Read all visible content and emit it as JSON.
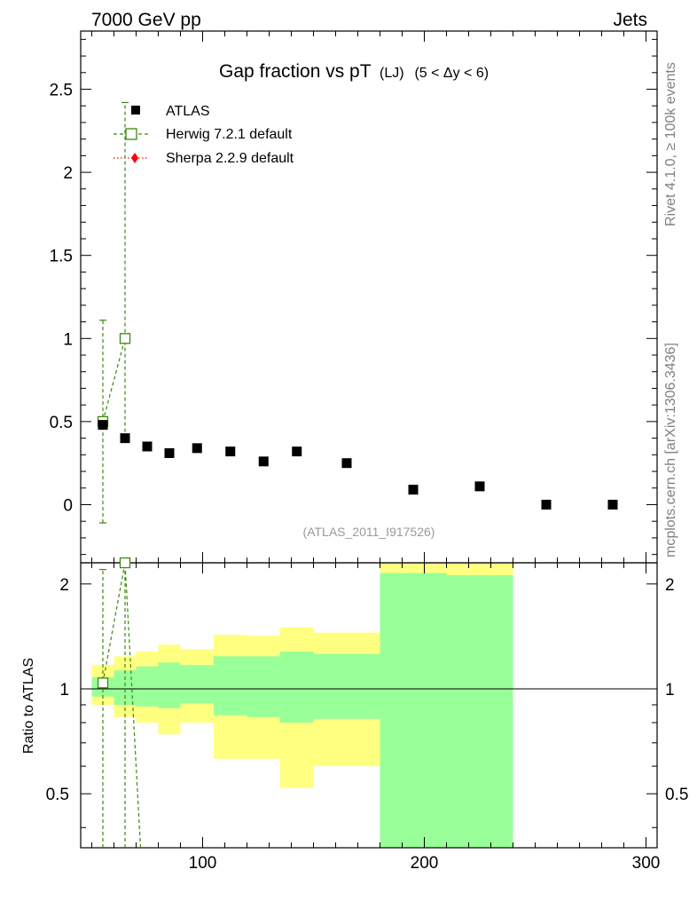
{
  "header": {
    "left": "7000 GeV pp",
    "right": "Jets"
  },
  "side_labels": {
    "rivet": "Rivet 4.1.0, ≥ 100k events",
    "mcplots": "mcplots.cern.ch [arXiv:1306.3436]"
  },
  "chart_data": {
    "type": "scatter",
    "title": {
      "main": "Gap fraction vs pT",
      "sub": "(LJ)",
      "range": "(5 < Δy < 6)"
    },
    "analysis_tag": "(ATLAS_2011_I917526)",
    "xlabel": "",
    "ylabel_ratio": "Ratio to ATLAS",
    "xlim": [
      45,
      305
    ],
    "ylim_main": [
      -0.35,
      2.85
    ],
    "ylim_ratio": [
      0.35,
      2.3
    ],
    "x_ticks": [
      {
        "value": 100,
        "label": "100"
      },
      {
        "value": 200,
        "label": "200"
      },
      {
        "value": 300,
        "label": "300"
      }
    ],
    "y_ticks_main": [
      {
        "value": 0,
        "label": "0"
      },
      {
        "value": 0.5,
        "label": "0.5"
      },
      {
        "value": 1,
        "label": "1"
      },
      {
        "value": 1.5,
        "label": "1.5"
      },
      {
        "value": 2,
        "label": "2"
      },
      {
        "value": 2.5,
        "label": "2.5"
      }
    ],
    "y_ticks_ratio": [
      {
        "value": 0.5,
        "label": "0.5"
      },
      {
        "value": 1,
        "label": "1"
      },
      {
        "value": 2,
        "label": "2"
      }
    ],
    "legend": [
      {
        "name": "ATLAS",
        "color": "#000000",
        "marker": "filled-square"
      },
      {
        "name": "Herwig 7.2.1 default",
        "color": "#3a8a0c",
        "marker": "open-square"
      },
      {
        "name": "Sherpa 2.2.9 default",
        "color": "#ff0000",
        "marker": "diamond"
      }
    ],
    "atlas": {
      "bins": [
        {
          "lo": 50,
          "hi": 60,
          "y": 0.48,
          "r_yellow": [
            0.9,
            1.17
          ],
          "r_green": [
            0.95,
            1.08
          ]
        },
        {
          "lo": 60,
          "hi": 70,
          "y": 0.4,
          "r_yellow": [
            0.83,
            1.24
          ],
          "r_green": [
            0.9,
            1.13
          ]
        },
        {
          "lo": 70,
          "hi": 80,
          "y": 0.35,
          "r_yellow": [
            0.8,
            1.28
          ],
          "r_green": [
            0.89,
            1.16
          ]
        },
        {
          "lo": 80,
          "hi": 90,
          "y": 0.31,
          "r_yellow": [
            0.74,
            1.34
          ],
          "r_green": [
            0.88,
            1.19
          ]
        },
        {
          "lo": 90,
          "hi": 105,
          "y": 0.34,
          "r_yellow": [
            0.8,
            1.3
          ],
          "r_green": [
            0.91,
            1.17
          ]
        },
        {
          "lo": 105,
          "hi": 120,
          "y": 0.32,
          "r_yellow": [
            0.63,
            1.43
          ],
          "r_green": [
            0.84,
            1.24
          ]
        },
        {
          "lo": 120,
          "hi": 135,
          "y": 0.26,
          "r_yellow": [
            0.63,
            1.42
          ],
          "r_green": [
            0.83,
            1.24
          ]
        },
        {
          "lo": 135,
          "hi": 150,
          "y": 0.32,
          "r_yellow": [
            0.52,
            1.5
          ],
          "r_green": [
            0.8,
            1.28
          ]
        },
        {
          "lo": 150,
          "hi": 180,
          "y": 0.25,
          "r_yellow": [
            0.6,
            1.45
          ],
          "r_green": [
            0.82,
            1.26
          ]
        },
        {
          "lo": 180,
          "hi": 210,
          "y": 0.09,
          "r_yellow": [
            0.35,
            2.3
          ],
          "r_green": [
            0.35,
            2.15
          ]
        },
        {
          "lo": 210,
          "hi": 240,
          "y": 0.11,
          "r_yellow": [
            0.35,
            2.3
          ],
          "r_green": [
            0.35,
            2.12
          ]
        },
        {
          "lo": 240,
          "hi": 270,
          "y": 0.0,
          "r_yellow": null,
          "r_green": null
        },
        {
          "lo": 270,
          "hi": 300,
          "y": 0.0,
          "r_yellow": null,
          "r_green": null
        }
      ]
    },
    "herwig": {
      "points": [
        {
          "x": 55,
          "y": 0.5,
          "ylo": -0.11,
          "yhi": 1.11
        },
        {
          "x": 65,
          "y": 1.0,
          "ylo": 0.4,
          "yhi": 2.42
        }
      ],
      "ratio_points": [
        {
          "x": 55,
          "r": 1.04,
          "rlo": 0.35,
          "rhi": 2.2
        },
        {
          "x": 65,
          "r": 2.3,
          "rlo": 0.35,
          "rhi": 2.3
        }
      ],
      "ratio_tail": {
        "x": 72,
        "r": 0.35
      }
    },
    "sherpa": {
      "points": []
    }
  }
}
